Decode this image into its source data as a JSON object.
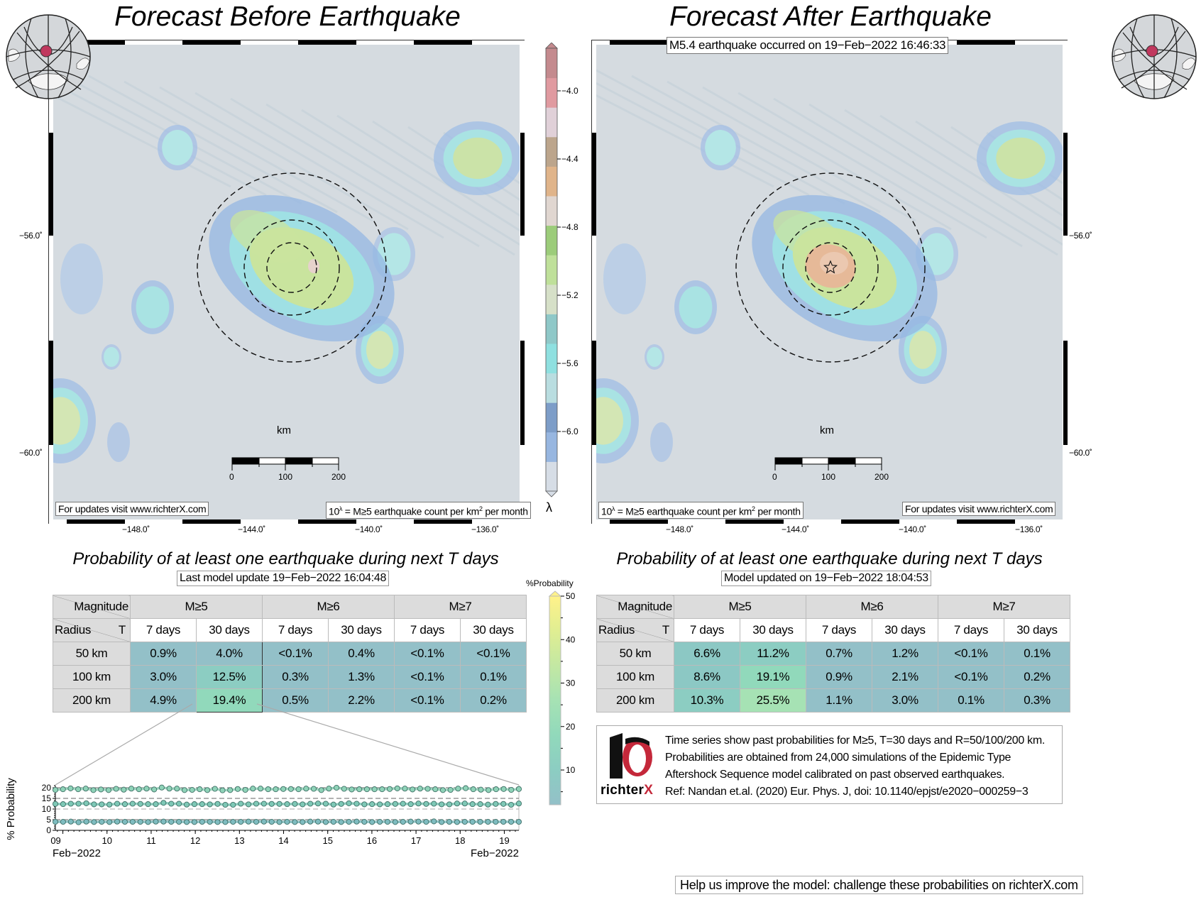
{
  "left_panel": {
    "title": "Forecast Before Earthquake",
    "lat_labels": [
      "−56.0˚",
      "−60.0˚"
    ],
    "lon_labels": [
      "−148.0˚",
      "−144.0˚",
      "−140.0˚",
      "−136.0˚"
    ],
    "scale_unit": "km",
    "scale_ticks": [
      "0",
      "100",
      "200"
    ],
    "updates_text": "For updates visit www.richterX.com",
    "legend_text_pre": "10",
    "legend_text_sup": "λ",
    "legend_text_mid": " = M≥5 earthquake count per km",
    "legend_text_sup2": "2",
    "legend_text_post": " per month",
    "epicenter_marker": false
  },
  "right_panel": {
    "title": "Forecast After Earthquake",
    "event_label": "M5.4 earthquake occurred on 19−Feb−2022 16:46:33",
    "lat_labels": [
      "−56.0˚",
      "−60.0˚"
    ],
    "lon_labels": [
      "−148.0˚",
      "−144.0˚",
      "−140.0˚",
      "−136.0˚"
    ],
    "scale_unit": "km",
    "scale_ticks": [
      "0",
      "100",
      "200"
    ],
    "updates_text": "For updates visit www.richterX.com",
    "legend_text_pre": "10",
    "legend_text_sup": "λ",
    "legend_text_mid": " = M≥5 earthquake count per km",
    "legend_text_sup2": "2",
    "legend_text_post": " per month",
    "epicenter_marker": true
  },
  "lambda_colorbar": {
    "label": "λ",
    "ticks": [
      "−4.0",
      "−4.4",
      "−4.8",
      "−5.2",
      "−5.6",
      "−6.0"
    ],
    "range": [
      -6.35,
      -3.75
    ],
    "colors": [
      "#d6dde6",
      "#97b6e0",
      "#7d9dc8",
      "#b9dde0",
      "#8fe0e0",
      "#8fc8c8",
      "#d6e0c8",
      "#bfe09a",
      "#9ccc7a",
      "#e0d6d0",
      "#e0b48a",
      "#bca58c",
      "#e0d0d8",
      "#e09aa0",
      "#c48a8e"
    ]
  },
  "left_table": {
    "title": "Probability of at least one earthquake during next T days",
    "update_label": "Last model update 19−Feb−2022 16:04:48",
    "corner_top": "Magnitude",
    "corner_bottom_left": "Radius",
    "corner_bottom_right": "T",
    "magnitudes": [
      "M≥5",
      "M≥6",
      "M≥7"
    ],
    "periods": [
      "7 days",
      "30 days",
      "7 days",
      "30 days",
      "7 days",
      "30 days"
    ],
    "rows": [
      {
        "radius": "50 km",
        "values": [
          "0.9%",
          "4.0%",
          "<0.1%",
          "0.4%",
          "<0.1%",
          "<0.1%"
        ],
        "numeric": [
          0.9,
          4.0,
          0.05,
          0.4,
          0.05,
          0.05
        ]
      },
      {
        "radius": "100 km",
        "values": [
          "3.0%",
          "12.5%",
          "0.3%",
          "1.3%",
          "<0.1%",
          "0.1%"
        ],
        "numeric": [
          3.0,
          12.5,
          0.3,
          1.3,
          0.05,
          0.1
        ]
      },
      {
        "radius": "200 km",
        "values": [
          "4.9%",
          "19.4%",
          "0.5%",
          "2.2%",
          "<0.1%",
          "0.2%"
        ],
        "numeric": [
          4.9,
          19.4,
          0.5,
          2.2,
          0.05,
          0.2
        ]
      }
    ]
  },
  "right_table": {
    "title": "Probability of at least one earthquake during next T days",
    "update_label": "Model updated on 19−Feb−2022 18:04:53",
    "corner_top": "Magnitude",
    "corner_bottom_left": "Radius",
    "corner_bottom_right": "T",
    "magnitudes": [
      "M≥5",
      "M≥6",
      "M≥7"
    ],
    "periods": [
      "7 days",
      "30 days",
      "7 days",
      "30 days",
      "7 days",
      "30 days"
    ],
    "rows": [
      {
        "radius": "50 km",
        "values": [
          "6.6%",
          "11.2%",
          "0.7%",
          "1.2%",
          "<0.1%",
          "0.1%"
        ],
        "numeric": [
          6.6,
          11.2,
          0.7,
          1.2,
          0.05,
          0.1
        ]
      },
      {
        "radius": "100 km",
        "values": [
          "8.6%",
          "19.1%",
          "0.9%",
          "2.1%",
          "<0.1%",
          "0.2%"
        ],
        "numeric": [
          8.6,
          19.1,
          0.9,
          2.1,
          0.05,
          0.2
        ]
      },
      {
        "radius": "200 km",
        "values": [
          "10.3%",
          "25.5%",
          "1.1%",
          "3.0%",
          "0.1%",
          "0.3%"
        ],
        "numeric": [
          10.3,
          25.5,
          1.1,
          3.0,
          0.1,
          0.3
        ]
      }
    ]
  },
  "prob_colorbar": {
    "label": "%Probability",
    "ticks": [
      "50",
      "40",
      "30",
      "20",
      "10"
    ],
    "tick_values": [
      50,
      40,
      30,
      20,
      10
    ],
    "range": [
      2,
      50
    ],
    "colors": [
      "#93c0c8",
      "#8ccdc2",
      "#91d9bb",
      "#a6e2b4",
      "#c3e8a3",
      "#e0ee92",
      "#fff28a"
    ]
  },
  "info": {
    "lines": [
      "Time series show past probabilities for M≥5, T=30 days and R=50/100/200 km.",
      "Probabilities are obtained from 24,000 simulations of the Epidemic Type",
      "Aftershock Sequence model calibrated on past observed earthquakes.",
      "Ref: Nandan et.al. (2020) Eur. Phys. J, doi: 10.1140/epjst/e2020−000259−3"
    ],
    "logo_text": "richter",
    "logo_text_x": "X",
    "help_text": "Help us improve the model: challenge these probabilities on richterX.com"
  },
  "chart_data": {
    "type": "line",
    "title": "",
    "xlabel": "Feb−2022",
    "xlabel_right": "Feb−2022",
    "ylabel": "% Probability",
    "ylim": [
      0,
      21
    ],
    "yticks": [
      0,
      5,
      10,
      15,
      20
    ],
    "x_tick_labels": [
      "09",
      "10",
      "11",
      "12",
      "13",
      "14",
      "15",
      "16",
      "17",
      "18",
      "19"
    ],
    "xlim_days": [
      8.83,
      19.33
    ],
    "grid": "dashed horizontal at 5, 10, 15, 20",
    "legend": "none",
    "series": [
      {
        "name": "R=200 km",
        "color": "#8fd3b8",
        "values": [
          19.0,
          19.3,
          19.7,
          19.3,
          19.6,
          18.9,
          19.2,
          18.9,
          19.5,
          19.1,
          19.6,
          19.3,
          19.6,
          19.2,
          20.1,
          19.6,
          19.6,
          18.9,
          19.0,
          19.3,
          18.9,
          19.5,
          18.8,
          18.9,
          19.4,
          19.0,
          19.6,
          19.6,
          19.3,
          19.3,
          19.4,
          19.4,
          19.3,
          19.6,
          19.5,
          18.9,
          19.6,
          20.0,
          19.5,
          19.2,
          19.3,
          19.3,
          19.3,
          19.3,
          19.4,
          19.7,
          19.6,
          19.2,
          19.6,
          19.5,
          19.3,
          18.9,
          19.0,
          19.6,
          19.8,
          19.3,
          19.1,
          18.9,
          19.3,
          19.4,
          19.0,
          19.4
        ]
      },
      {
        "name": "R=100 km",
        "color": "#7ec8b6",
        "values": [
          12.4,
          12.3,
          12.5,
          12.5,
          12.7,
          12.2,
          12.2,
          12.1,
          12.5,
          12.3,
          12.5,
          12.4,
          12.3,
          12.3,
          12.9,
          12.5,
          12.5,
          12.1,
          12.3,
          12.3,
          12.2,
          12.4,
          12.0,
          12.0,
          12.5,
          12.2,
          12.5,
          12.5,
          12.4,
          12.4,
          12.3,
          12.4,
          12.2,
          12.5,
          12.6,
          12.5,
          12.1,
          12.4,
          12.7,
          12.5,
          12.2,
          12.3,
          12.2,
          12.3,
          12.4,
          12.5,
          12.3,
          12.6,
          12.4,
          12.5,
          12.2,
          12.2,
          12.6,
          12.6,
          12.3,
          12.3,
          12.1,
          12.4,
          12.4,
          12.0,
          12.6
        ]
      },
      {
        "name": "R=50 km",
        "color": "#7fbcc0",
        "values": [
          4.0,
          4.0,
          4.1,
          3.8,
          4.1,
          3.9,
          4.0,
          3.9,
          4.1,
          4.0,
          4.0,
          4.0,
          3.9,
          4.1,
          4.1,
          4.0,
          4.0,
          3.9,
          3.9,
          4.0,
          4.0,
          3.9,
          3.9,
          4.0,
          4.0,
          4.1,
          4.0,
          4.1,
          4.0,
          3.9,
          4.0,
          3.9,
          3.9,
          4.1,
          4.1,
          3.9,
          4.0,
          3.9,
          4.0,
          4.1,
          4.0,
          3.9,
          4.0,
          4.0,
          3.9,
          4.0,
          4.1,
          4.1,
          4.0,
          4.2,
          3.9,
          4.0,
          3.9,
          4.0,
          4.0,
          4.0,
          4.0,
          4.0,
          4.0,
          4.0,
          4.0
        ]
      }
    ]
  }
}
